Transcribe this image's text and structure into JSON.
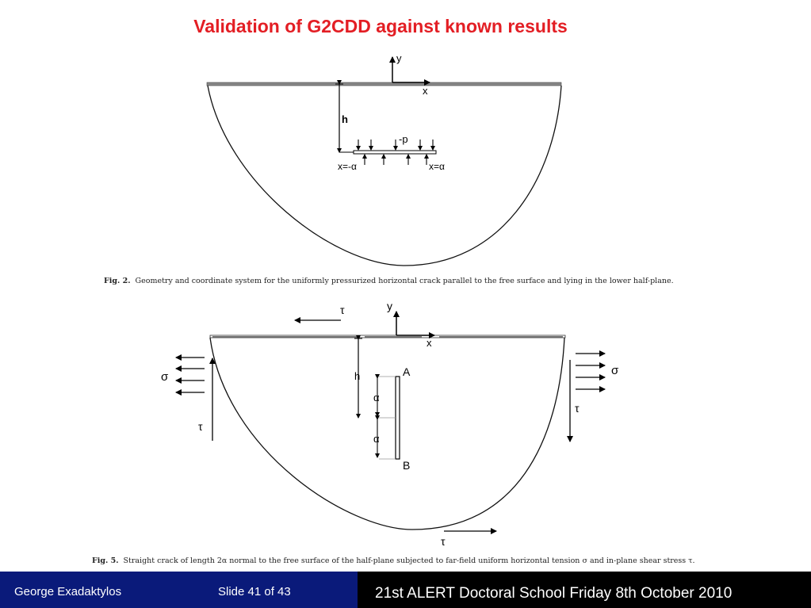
{
  "slide_title": "Validation of G2CDD against known results",
  "fig2": {
    "labels": {
      "y": "y",
      "x": "x",
      "h": "h",
      "p": "-p",
      "left_tip": "x=-α",
      "right_tip": "x=α"
    },
    "caption_number": "Fig. 2.",
    "caption_text": "Geometry and coordinate system for the uniformly pressurized horizontal crack parallel to the free surface and lying in the lower half-plane."
  },
  "fig5": {
    "labels": {
      "tau_top": "τ",
      "y": "y",
      "x": "x",
      "sigma_left": "σ",
      "sigma_right": "σ",
      "tau_left": "τ",
      "tau_right": "τ",
      "tau_bottom": "τ",
      "h": "h",
      "a1": "α",
      "a2": "α",
      "A": "A",
      "B": "B"
    },
    "caption_number": "Fig. 5.",
    "caption_text": "Straight crack of length 2α normal to the free surface of the half-plane subjected to far-field uniform horizontal tension σ and in-plane shear stress τ."
  },
  "footer": {
    "author": "George Exadaktylos",
    "slide": "Slide 41 of 43",
    "event": "21st ALERT Doctoral School  Friday 8th October 2010"
  },
  "colors": {
    "title": "#e31e24",
    "footer_left": "#0a1a7a",
    "footer_right": "#000000"
  }
}
